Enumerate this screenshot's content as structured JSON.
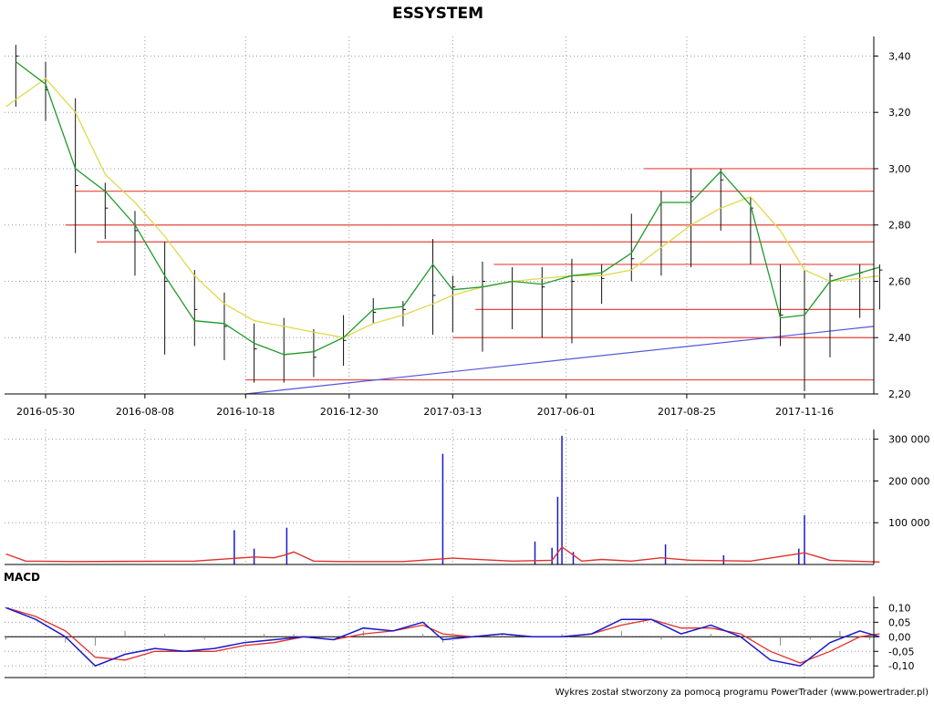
{
  "chart_data": [
    {
      "type": "candlestick",
      "title": "ESSYSTEM",
      "x_ticks": [
        "2016-05-30",
        "2016-08-08",
        "2016-10-18",
        "2016-12-30",
        "2017-03-13",
        "2017-06-01",
        "2017-08-25",
        "2017-11-16"
      ],
      "y_ticks": [
        "3,40",
        "3,20",
        "3,00",
        "2,80",
        "2,60",
        "2,40",
        "2,20"
      ],
      "ylim": [
        2.2,
        3.45
      ],
      "grid": true,
      "horizontal_levels": [
        {
          "value": 3.0,
          "from": "2017-07-26",
          "to": "2018-01-09"
        },
        {
          "value": 2.92,
          "from": "2016-06-20",
          "to": "2018-01-09"
        },
        {
          "value": 2.8,
          "from": "2016-06-13",
          "to": "2018-01-09"
        },
        {
          "value": 2.74,
          "from": "2016-07-05",
          "to": "2018-01-09"
        },
        {
          "value": 2.66,
          "from": "2017-04-11",
          "to": "2018-01-09"
        },
        {
          "value": 2.5,
          "from": "2017-03-29",
          "to": "2018-01-09"
        },
        {
          "value": 2.4,
          "from": "2017-03-13",
          "to": "2018-01-09"
        },
        {
          "value": 2.25,
          "from": "2016-10-18",
          "to": "2018-01-09"
        }
      ],
      "trendline": {
        "from": {
          "x": "2016-10-18",
          "y": 2.2
        },
        "to": {
          "x": "2018-01-09",
          "y": 2.44
        }
      },
      "series": [
        {
          "kind": "ohlc",
          "x": [
            "2016-05-09",
            "2016-05-30",
            "2016-06-20",
            "2016-07-11",
            "2016-08-01",
            "2016-08-22",
            "2016-09-12",
            "2016-10-03",
            "2016-10-24",
            "2016-11-14",
            "2016-12-05",
            "2016-12-26",
            "2017-01-16",
            "2017-02-06",
            "2017-02-27",
            "2017-03-13",
            "2017-04-03",
            "2017-04-24",
            "2017-05-15",
            "2017-06-05",
            "2017-06-26",
            "2017-07-17",
            "2017-08-07",
            "2017-08-28",
            "2017-09-18",
            "2017-10-09",
            "2017-10-30",
            "2017-11-16",
            "2017-12-04",
            "2017-12-25",
            "2018-01-08"
          ],
          "high": [
            3.44,
            3.38,
            3.25,
            2.95,
            2.85,
            2.74,
            2.64,
            2.56,
            2.45,
            2.47,
            2.43,
            2.48,
            2.54,
            2.53,
            2.75,
            2.62,
            2.67,
            2.65,
            2.65,
            2.68,
            2.66,
            2.84,
            2.92,
            3.0,
            3.0,
            2.9,
            2.66,
            2.64,
            2.63,
            2.66,
            2.66
          ],
          "low": [
            3.22,
            3.17,
            2.7,
            2.75,
            2.62,
            2.34,
            2.37,
            2.32,
            2.24,
            2.24,
            2.26,
            2.3,
            2.45,
            2.44,
            2.41,
            2.42,
            2.35,
            2.43,
            2.4,
            2.38,
            2.52,
            2.6,
            2.62,
            2.65,
            2.78,
            2.66,
            2.37,
            2.21,
            2.33,
            2.47,
            2.5
          ],
          "close": [
            3.4,
            3.28,
            2.94,
            2.86,
            2.78,
            2.6,
            2.5,
            2.44,
            2.36,
            2.34,
            2.33,
            2.39,
            2.49,
            2.5,
            2.55,
            2.58,
            2.6,
            2.6,
            2.58,
            2.6,
            2.61,
            2.68,
            2.88,
            2.9,
            2.96,
            2.86,
            2.48,
            2.5,
            2.62,
            2.63,
            2.64
          ]
        },
        {
          "kind": "ma-short",
          "x": [
            "2016-05-09",
            "2016-05-30",
            "2016-06-20",
            "2016-07-11",
            "2016-08-01",
            "2016-08-22",
            "2016-09-12",
            "2016-10-03",
            "2016-10-24",
            "2016-11-14",
            "2016-12-05",
            "2016-12-26",
            "2017-01-16",
            "2017-02-06",
            "2017-02-27",
            "2017-03-13",
            "2017-04-03",
            "2017-04-24",
            "2017-05-15",
            "2017-06-05",
            "2017-06-26",
            "2017-07-17",
            "2017-08-07",
            "2017-08-28",
            "2017-09-18",
            "2017-10-09",
            "2017-10-30",
            "2017-11-16",
            "2017-12-04",
            "2017-12-25",
            "2018-01-08"
          ],
          "y": [
            3.38,
            3.3,
            3.0,
            2.92,
            2.8,
            2.62,
            2.46,
            2.45,
            2.38,
            2.34,
            2.35,
            2.4,
            2.5,
            2.51,
            2.66,
            2.57,
            2.58,
            2.6,
            2.59,
            2.62,
            2.63,
            2.7,
            2.88,
            2.88,
            2.99,
            2.87,
            2.47,
            2.48,
            2.6,
            2.63,
            2.65
          ]
        },
        {
          "kind": "ma-long",
          "x": [
            "2016-05-02",
            "2016-05-30",
            "2016-06-20",
            "2016-07-11",
            "2016-08-01",
            "2016-08-22",
            "2016-09-12",
            "2016-10-03",
            "2016-10-24",
            "2016-11-14",
            "2016-12-05",
            "2016-12-26",
            "2017-01-16",
            "2017-02-06",
            "2017-02-27",
            "2017-03-13",
            "2017-04-03",
            "2017-04-24",
            "2017-05-15",
            "2017-06-05",
            "2017-06-26",
            "2017-07-17",
            "2017-08-07",
            "2017-08-28",
            "2017-09-18",
            "2017-10-09",
            "2017-10-30",
            "2017-11-16",
            "2017-12-04",
            "2017-12-25",
            "2018-01-08"
          ],
          "y": [
            3.22,
            3.32,
            3.2,
            2.98,
            2.88,
            2.76,
            2.62,
            2.52,
            2.46,
            2.44,
            2.42,
            2.4,
            2.45,
            2.48,
            2.52,
            2.55,
            2.58,
            2.6,
            2.61,
            2.62,
            2.62,
            2.64,
            2.72,
            2.8,
            2.86,
            2.9,
            2.78,
            2.64,
            2.6,
            2.61,
            2.62
          ]
        }
      ]
    },
    {
      "type": "bar",
      "x_ticks": [],
      "y_ticks": [
        "300 000",
        "200 000",
        "100 000"
      ],
      "ylim": [
        0,
        310000
      ],
      "grid": true,
      "series": [
        {
          "kind": "volume",
          "x": [
            "2016-10-10",
            "2016-10-24",
            "2016-11-16",
            "2017-03-06",
            "2017-05-10",
            "2017-05-22",
            "2017-05-26",
            "2017-05-29",
            "2017-06-06",
            "2017-08-10",
            "2017-09-20",
            "2017-11-12",
            "2017-11-16"
          ],
          "values": [
            82000,
            38000,
            88000,
            265000,
            55000,
            40000,
            162000,
            308000,
            30000,
            48000,
            22000,
            38000,
            118000
          ]
        },
        {
          "kind": "volume-average",
          "x": [
            "2016-05-02",
            "2016-05-16",
            "2016-06-20",
            "2016-09-12",
            "2016-10-24",
            "2016-11-07",
            "2016-11-14",
            "2016-11-21",
            "2016-12-05",
            "2016-12-26",
            "2017-02-06",
            "2017-03-13",
            "2017-04-24",
            "2017-05-22",
            "2017-05-29",
            "2017-06-12",
            "2017-06-26",
            "2017-07-17",
            "2017-08-07",
            "2017-08-28",
            "2017-10-09",
            "2017-11-16",
            "2017-12-04",
            "2018-01-08"
          ],
          "y": [
            25000,
            8000,
            7000,
            8000,
            18000,
            16000,
            22000,
            30000,
            8000,
            7000,
            7000,
            15000,
            8000,
            10000,
            42000,
            8000,
            12000,
            8000,
            16000,
            10000,
            8000,
            28000,
            10000,
            6000
          ]
        }
      ]
    },
    {
      "type": "line",
      "title": "MACD",
      "x_ticks": [],
      "y_ticks": [
        "0,10",
        "0,05",
        "0,00",
        "-0,05",
        "-0,10"
      ],
      "ylim": [
        -0.14,
        0.12
      ],
      "grid": true,
      "series": [
        {
          "kind": "macd",
          "x": [
            "2016-05-02",
            "2016-05-23",
            "2016-06-13",
            "2016-07-04",
            "2016-07-25",
            "2016-08-15",
            "2016-09-05",
            "2016-09-26",
            "2016-10-17",
            "2016-11-07",
            "2016-11-28",
            "2016-12-19",
            "2017-01-09",
            "2017-01-30",
            "2017-02-20",
            "2017-03-06",
            "2017-03-27",
            "2017-04-17",
            "2017-05-08",
            "2017-05-29",
            "2017-06-19",
            "2017-07-10",
            "2017-07-31",
            "2017-08-21",
            "2017-09-11",
            "2017-10-02",
            "2017-10-23",
            "2017-11-13",
            "2017-12-04",
            "2017-12-25",
            "2018-01-08"
          ],
          "y": [
            0.1,
            0.06,
            0.0,
            -0.1,
            -0.06,
            -0.04,
            -0.05,
            -0.04,
            -0.02,
            -0.01,
            0.0,
            -0.01,
            0.03,
            0.02,
            0.05,
            -0.01,
            0.0,
            0.01,
            0.0,
            0.0,
            0.01,
            0.06,
            0.06,
            0.01,
            0.04,
            0.0,
            -0.08,
            -0.1,
            -0.02,
            0.02,
            0.0
          ]
        },
        {
          "kind": "signal",
          "x": [
            "2016-05-02",
            "2016-05-23",
            "2016-06-13",
            "2016-07-04",
            "2016-07-25",
            "2016-08-15",
            "2016-09-05",
            "2016-09-26",
            "2016-10-17",
            "2016-11-07",
            "2016-11-28",
            "2016-12-19",
            "2017-01-09",
            "2017-01-30",
            "2017-02-20",
            "2017-03-06",
            "2017-03-27",
            "2017-04-17",
            "2017-05-08",
            "2017-05-29",
            "2017-06-19",
            "2017-07-10",
            "2017-07-31",
            "2017-08-21",
            "2017-09-11",
            "2017-10-02",
            "2017-10-23",
            "2017-11-13",
            "2017-12-04",
            "2017-12-25",
            "2018-01-08"
          ],
          "y": [
            0.1,
            0.07,
            0.02,
            -0.07,
            -0.08,
            -0.05,
            -0.05,
            -0.05,
            -0.03,
            -0.02,
            0.0,
            -0.01,
            0.01,
            0.02,
            0.04,
            0.01,
            0.0,
            0.01,
            0.0,
            0.0,
            0.01,
            0.04,
            0.06,
            0.03,
            0.03,
            0.01,
            -0.05,
            -0.09,
            -0.05,
            0.0,
            0.01
          ]
        },
        {
          "kind": "histogram",
          "x": [
            "2016-05-02",
            "2016-06-13",
            "2016-07-04",
            "2016-07-25",
            "2016-08-22",
            "2016-09-19",
            "2016-10-31",
            "2016-11-21",
            "2017-01-09",
            "2017-02-20",
            "2017-03-06",
            "2017-04-17",
            "2017-05-29",
            "2017-07-10",
            "2017-08-07",
            "2017-09-11",
            "2017-10-09",
            "2017-10-30",
            "2017-11-20",
            "2017-12-11",
            "2018-01-01"
          ],
          "y": [
            -0.01,
            -0.02,
            -0.03,
            0.02,
            0.01,
            -0.01,
            0.01,
            0.01,
            0.02,
            0.01,
            -0.02,
            0.01,
            0.01,
            0.02,
            -0.01,
            0.01,
            -0.01,
            -0.03,
            -0.01,
            0.02,
            -0.01
          ]
        }
      ]
    }
  ],
  "footer": {
    "credit": "Wykres został stworzony za pomocą programu PowerTrader (www.powertrader.pl)"
  }
}
